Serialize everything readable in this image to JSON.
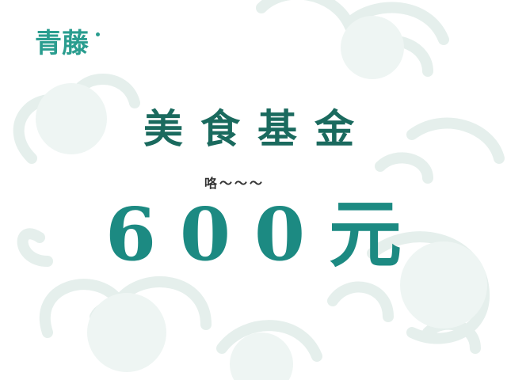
{
  "logo": {
    "text": "青藤"
  },
  "headline": {
    "title": "美食基金",
    "sub_note": "咯～～～",
    "amount": "600元"
  },
  "colors": {
    "brand": "#2a9d8f",
    "title": "#1a6a5e",
    "amount": "#1c8a82",
    "cloud": "#e7f0ee",
    "background": "#ffffff"
  },
  "icons": [
    "decorative-cloud-pattern-icon"
  ]
}
